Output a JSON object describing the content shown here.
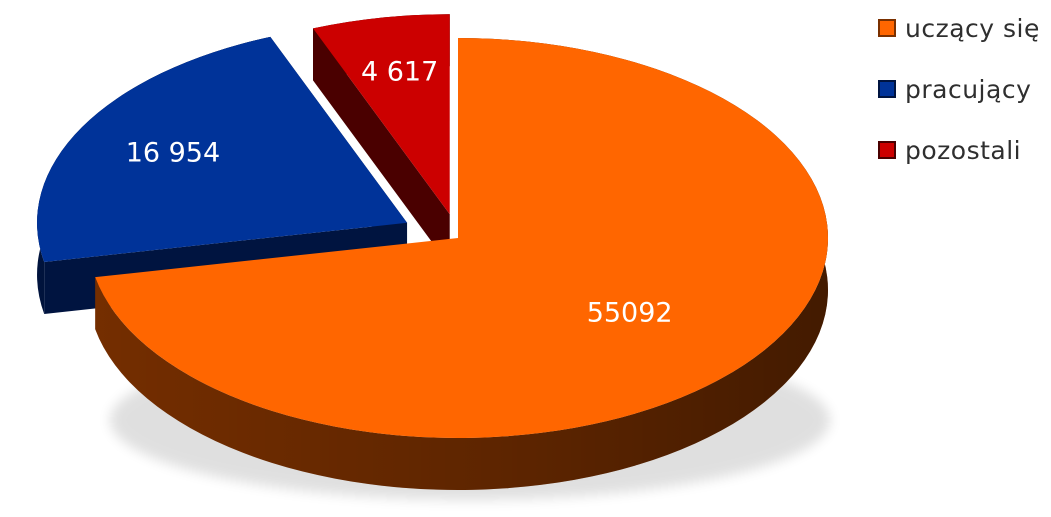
{
  "chart_data": {
    "type": "pie",
    "categories": [
      "uczący się",
      "pracujący",
      "pozostali"
    ],
    "values": [
      55092,
      16954,
      4617
    ],
    "data_labels": [
      "55092",
      "16 954",
      "4 617"
    ],
    "colors": [
      "#ff6600",
      "#003399",
      "#cc0000"
    ],
    "exploded": true,
    "style": "3d",
    "legend": "top-right"
  },
  "legend": {
    "items": [
      {
        "label": "uczący się",
        "color": "#ff6600"
      },
      {
        "label": "pracujący",
        "color": "#003399"
      },
      {
        "label": "pozostali",
        "color": "#cc0000"
      }
    ]
  }
}
